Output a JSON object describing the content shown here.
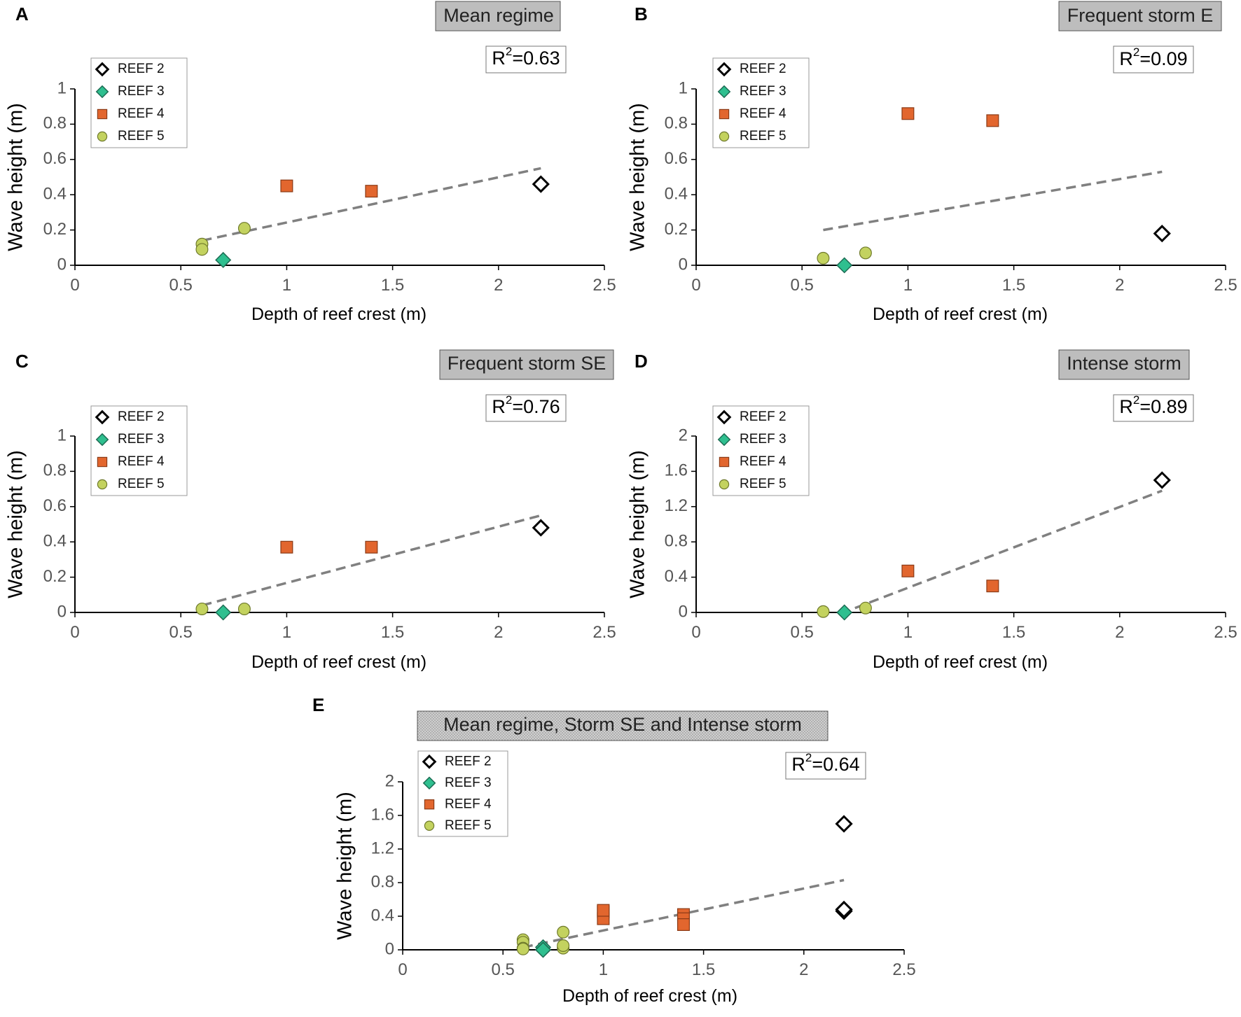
{
  "chart_data": [
    {
      "panel": "A",
      "type": "scatter",
      "title": "Mean regime",
      "r2_base": "R",
      "r2_sup": "2",
      "r2_val": "=0.63",
      "xlabel": "Depth of reef crest (m)",
      "ylabel": "Wave height (m)",
      "xlim": [
        0,
        2.5
      ],
      "ylim": [
        0,
        1
      ],
      "xticks": [
        0,
        0.5,
        1,
        1.5,
        2,
        2.5
      ],
      "xtick_labels": [
        "0",
        "0.5",
        "1",
        "1.5",
        "2",
        "2.5"
      ],
      "yticks": [
        0,
        0.2,
        0.4,
        0.6,
        0.8,
        1
      ],
      "ytick_labels": [
        "0",
        "0.2",
        "0.4",
        "0.6",
        "0.8",
        "1"
      ],
      "series": [
        {
          "name": "REEF 2",
          "marker": "diamond-open",
          "x": [
            2.2
          ],
          "y": [
            0.46
          ]
        },
        {
          "name": "REEF 3",
          "marker": "diamond-filled",
          "x": [
            0.7
          ],
          "y": [
            0.03
          ]
        },
        {
          "name": "REEF 4",
          "marker": "square",
          "x": [
            1.0,
            1.4
          ],
          "y": [
            0.45,
            0.42
          ]
        },
        {
          "name": "REEF 5",
          "marker": "circle",
          "x": [
            0.6,
            0.6,
            0.8
          ],
          "y": [
            0.12,
            0.09,
            0.21
          ]
        }
      ],
      "trend": {
        "x": [
          0.6,
          2.2
        ],
        "y": [
          0.14,
          0.55
        ]
      }
    },
    {
      "panel": "B",
      "type": "scatter",
      "title": "Frequent storm E",
      "r2_base": "R",
      "r2_sup": "2",
      "r2_val": "=0.09",
      "xlabel": "Depth of reef crest (m)",
      "ylabel": "Wave height (m)",
      "xlim": [
        0,
        2.5
      ],
      "ylim": [
        0,
        1
      ],
      "xticks": [
        0,
        0.5,
        1,
        1.5,
        2,
        2.5
      ],
      "xtick_labels": [
        "0",
        "0.5",
        "1",
        "1.5",
        "2",
        "2.5"
      ],
      "yticks": [
        0,
        0.2,
        0.4,
        0.6,
        0.8,
        1
      ],
      "ytick_labels": [
        "0",
        "0.2",
        "0.4",
        "0.6",
        "0.8",
        "1"
      ],
      "series": [
        {
          "name": "REEF 2",
          "marker": "diamond-open",
          "x": [
            2.2
          ],
          "y": [
            0.18
          ]
        },
        {
          "name": "REEF 3",
          "marker": "diamond-filled",
          "x": [
            0.7
          ],
          "y": [
            0.0
          ]
        },
        {
          "name": "REEF 4",
          "marker": "square",
          "x": [
            1.0,
            1.4
          ],
          "y": [
            0.86,
            0.82
          ]
        },
        {
          "name": "REEF 5",
          "marker": "circle",
          "x": [
            0.6,
            0.8
          ],
          "y": [
            0.04,
            0.07
          ]
        }
      ],
      "trend": {
        "x": [
          0.6,
          2.2
        ],
        "y": [
          0.2,
          0.53
        ]
      }
    },
    {
      "panel": "C",
      "type": "scatter",
      "title": "Frequent storm SE",
      "r2_base": "R",
      "r2_sup": "2",
      "r2_val": "=0.76",
      "xlabel": "Depth of reef crest (m)",
      "ylabel": "Wave height (m)",
      "xlim": [
        0,
        2.5
      ],
      "ylim": [
        0,
        1
      ],
      "xticks": [
        0,
        0.5,
        1,
        1.5,
        2,
        2.5
      ],
      "xtick_labels": [
        "0",
        "0.5",
        "1",
        "1.5",
        "2",
        "2.5"
      ],
      "yticks": [
        0,
        0.2,
        0.4,
        0.6,
        0.8,
        1
      ],
      "ytick_labels": [
        "0",
        "0.2",
        "0.4",
        "0.6",
        "0.8",
        "1"
      ],
      "series": [
        {
          "name": "REEF 2",
          "marker": "diamond-open",
          "x": [
            2.2
          ],
          "y": [
            0.48
          ]
        },
        {
          "name": "REEF 3",
          "marker": "diamond-filled",
          "x": [
            0.7
          ],
          "y": [
            0.0
          ]
        },
        {
          "name": "REEF 4",
          "marker": "square",
          "x": [
            1.0,
            1.4
          ],
          "y": [
            0.37,
            0.37
          ]
        },
        {
          "name": "REEF 5",
          "marker": "circle",
          "x": [
            0.6,
            0.8
          ],
          "y": [
            0.02,
            0.02
          ]
        }
      ],
      "trend": {
        "x": [
          0.6,
          2.2
        ],
        "y": [
          0.04,
          0.55
        ]
      }
    },
    {
      "panel": "D",
      "type": "scatter",
      "title": "Intense storm",
      "r2_base": "R",
      "r2_sup": "2",
      "r2_val": "=0.89",
      "xlabel": "Depth of reef crest (m)",
      "ylabel": "Wave height (m)",
      "xlim": [
        0,
        2.5
      ],
      "ylim": [
        0,
        2
      ],
      "xticks": [
        0,
        0.5,
        1,
        1.5,
        2,
        2.5
      ],
      "xtick_labels": [
        "0",
        "0.5",
        "1",
        "1.5",
        "2",
        "2.5"
      ],
      "yticks": [
        0,
        0.4,
        0.8,
        1.2,
        1.6,
        2
      ],
      "ytick_labels": [
        "0",
        "0.4",
        "0.8",
        "1.2",
        "1.6",
        "2"
      ],
      "series": [
        {
          "name": "REEF 2",
          "marker": "diamond-open",
          "x": [
            2.2
          ],
          "y": [
            1.5
          ]
        },
        {
          "name": "REEF 3",
          "marker": "diamond-filled",
          "x": [
            0.7
          ],
          "y": [
            0.0
          ]
        },
        {
          "name": "REEF 4",
          "marker": "square",
          "x": [
            1.0,
            1.4
          ],
          "y": [
            0.47,
            0.3
          ]
        },
        {
          "name": "REEF 5",
          "marker": "circle",
          "x": [
            0.6,
            0.8
          ],
          "y": [
            0.01,
            0.05
          ]
        }
      ],
      "trend": {
        "x": [
          0.75,
          2.2
        ],
        "y": [
          0.05,
          1.38
        ]
      }
    },
    {
      "panel": "E",
      "type": "scatter",
      "title": "Mean regime, Storm SE and Intense storm",
      "r2_base": "R",
      "r2_sup": "2",
      "r2_val": "=0.64",
      "xlabel": "Depth of reef crest (m)",
      "ylabel": "Wave height (m)",
      "xlim": [
        0,
        2.5
      ],
      "ylim": [
        0,
        2
      ],
      "xticks": [
        0,
        0.5,
        1,
        1.5,
        2,
        2.5
      ],
      "xtick_labels": [
        "0",
        "0.5",
        "1",
        "1.5",
        "2",
        "2.5"
      ],
      "yticks": [
        0,
        0.4,
        0.8,
        1.2,
        1.6,
        2
      ],
      "ytick_labels": [
        "0",
        "0.4",
        "0.8",
        "1.2",
        "1.6",
        "2"
      ],
      "series": [
        {
          "name": "REEF 2",
          "marker": "diamond-open",
          "x": [
            2.2,
            2.2,
            2.2
          ],
          "y": [
            1.5,
            0.46,
            0.48
          ]
        },
        {
          "name": "REEF 3",
          "marker": "diamond-filled",
          "x": [
            0.7,
            0.7,
            0.7
          ],
          "y": [
            0.03,
            0.0,
            0.0
          ]
        },
        {
          "name": "REEF 4",
          "marker": "square",
          "x": [
            1.0,
            1.0,
            1.0,
            1.4,
            1.4,
            1.4
          ],
          "y": [
            0.45,
            0.37,
            0.47,
            0.42,
            0.37,
            0.3
          ]
        },
        {
          "name": "REEF 5",
          "marker": "circle",
          "x": [
            0.6,
            0.6,
            0.6,
            0.6,
            0.8,
            0.8,
            0.8
          ],
          "y": [
            0.12,
            0.09,
            0.02,
            0.01,
            0.21,
            0.02,
            0.05
          ]
        }
      ],
      "trend": {
        "x": [
          0.6,
          2.2
        ],
        "y": [
          0.03,
          0.83
        ]
      }
    }
  ],
  "legend_style": {
    "REEF 2": {
      "fill": "#ffffff",
      "stroke": "#000000"
    },
    "REEF 3": {
      "fill": "#2fbf8f",
      "stroke": "#1d6b53"
    },
    "REEF 4": {
      "fill": "#e2662e",
      "stroke": "#8a3a16"
    },
    "REEF 5": {
      "fill": "#c3d25f",
      "stroke": "#6f7a2c"
    }
  },
  "colors": {
    "trend": "#808080",
    "title_box": "#bdbdbd",
    "axis": "#000000",
    "tick_text": "#555555"
  }
}
